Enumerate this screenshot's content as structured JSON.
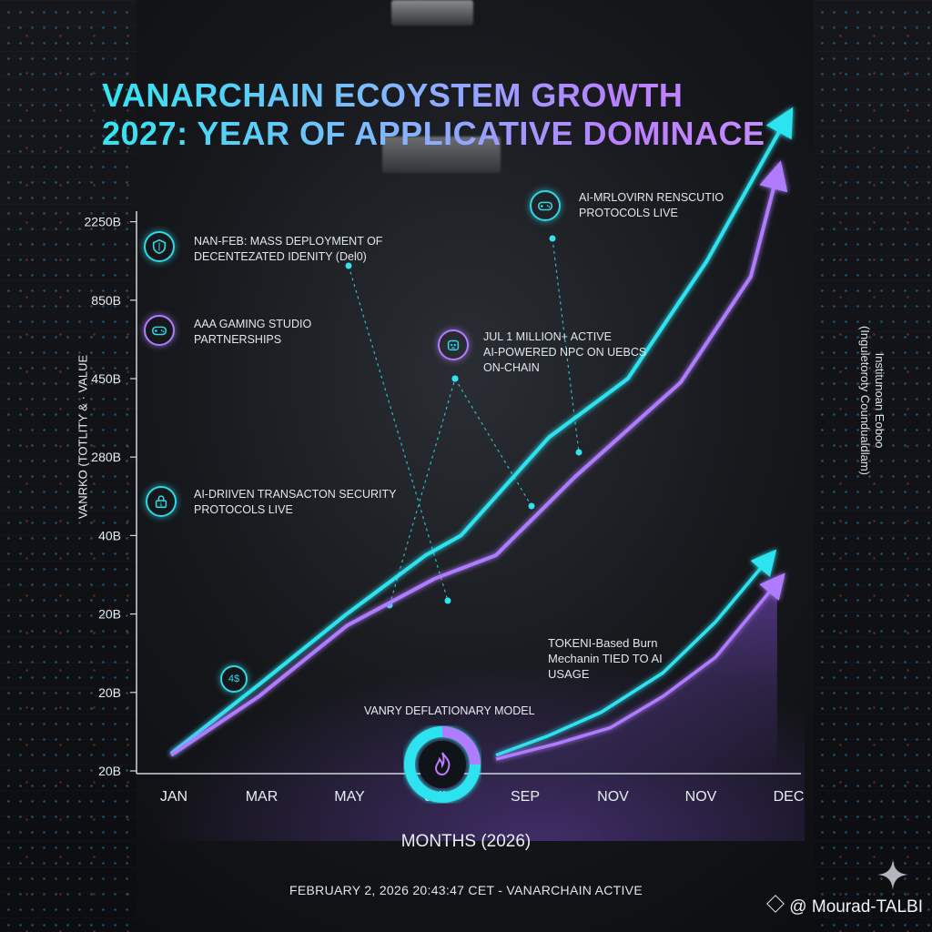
{
  "title": {
    "line1": "VANARCHAIN ECOYSTEM GROWTH",
    "line2": "2027: YEAR OF APPLICATIVE DOMINACE"
  },
  "axes": {
    "ylabel": "VANRKO (TOTLITY & · VALUE",
    "xlabel": "MONTHS (2026)",
    "right_label_line1": "Institunoan Eoboo",
    "right_label_line2": "(Inguletoroty Coundualdlam)"
  },
  "annotations": {
    "identity": {
      "line1": "NAN-FEB: MASS DEPLOYMENT OF",
      "line2": "DECENTEZATED IDENITY (Del0)",
      "icon": "shield-icon"
    },
    "gaming": {
      "line1": "AAA GAMING STUDIO",
      "line2": "PARTNERSHIPS",
      "icon": "gamepad-icon"
    },
    "security": {
      "line1": "AI-DRIIVEN TRANSACTON SECURITY",
      "line2": "PROTOCOLS LIVE",
      "icon": "lock-icon"
    },
    "npc": {
      "line1": "JUL 1 MILLION+ ACTIVE",
      "line2": "AI-POWERED NPC ON UEBCS",
      "line3": "ON-CHAIN",
      "icon": "robot-icon"
    },
    "protocols": {
      "line1": "AI-MRLOVIRN RENSCUTIO",
      "line2": "PROTOCOLS LIVE",
      "icon": "gamepad-icon"
    },
    "burn": {
      "line1": "TOKENI-Based Burn",
      "line2": "Mechanin TIED TO AI",
      "line3": "USAGE"
    },
    "small_icon_text": "4$",
    "donut_label": "VANRY DEFLATIONARY MODEL"
  },
  "footer": "FEBRUARY 2, 2026 20:43:47 CET - VANARCHAIN ACTIVE",
  "credit": "@ Mourad-TALBI",
  "colors": {
    "cyan": "#2fe3f0",
    "purple": "#b07cff"
  },
  "chart_data": {
    "type": "line",
    "title": "VANARCHAIN ECOYSTEM GROWTH 2027: YEAR OF APPLICATIVE DOMINACE",
    "xlabel": "MONTHS (2026)",
    "ylabel": "VANRKO (TOTLITY & · VALUE",
    "categories": [
      "JAN",
      "MAR",
      "MAY",
      "JUL",
      "SEP",
      "NOV",
      "NOV",
      "DEC"
    ],
    "y_ticks": [
      "20B",
      "20B",
      "20B",
      "40B",
      "280B",
      "450B",
      "850B",
      "2250B"
    ],
    "series": [
      {
        "color": "#2fe3f0",
        "x": [
          0,
          1,
          2,
          2.9,
          3.3,
          4.3,
          5.2,
          6.1,
          7.0
        ],
        "y": [
          0.22,
          1.1,
          2.0,
          2.75,
          3.0,
          4.25,
          5.0,
          6.5,
          8.3
        ]
      },
      {
        "color": "#b07cff",
        "x": [
          0,
          1,
          2,
          3.0,
          3.7,
          4.6,
          5.8,
          6.6,
          6.9
        ],
        "y": [
          0.2,
          0.95,
          1.85,
          2.45,
          2.75,
          3.75,
          4.95,
          6.3,
          7.6
        ]
      },
      {
        "color": "#2fe3f0",
        "x": [
          3.7,
          4.3,
          4.9,
          5.6,
          6.2,
          6.8
        ],
        "y": [
          0.2,
          0.45,
          0.75,
          1.25,
          1.9,
          2.7
        ]
      },
      {
        "color": "#b07cff",
        "x": [
          3.7,
          4.4,
          5.0,
          5.6,
          6.2,
          6.9
        ],
        "y": [
          0.15,
          0.35,
          0.55,
          0.95,
          1.45,
          2.4
        ]
      }
    ],
    "grid": false,
    "legend": "none"
  }
}
